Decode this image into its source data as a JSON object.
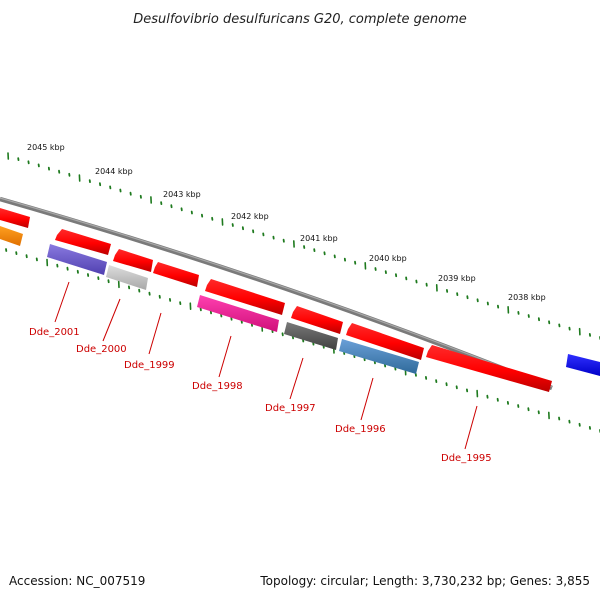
{
  "title": "Desulfovibrio desulfuricans G20, complete genome",
  "accession": "Accession: NC_007519",
  "summary": "Topology: circular; Length: 3,730,232 bp; Genes: 3,855",
  "kbp_labels": [
    "2045 kbp",
    "2044 kbp",
    "2043 kbp",
    "2042 kbp",
    "2041 kbp",
    "2040 kbp",
    "2039 kbp",
    "2038 kbp"
  ],
  "gene_labels": [
    "Dde_2001",
    "Dde_2000",
    "Dde_1999",
    "Dde_1998",
    "Dde_1997",
    "Dde_1996",
    "Dde_1995"
  ],
  "colors": {
    "backbone": "#7a7a7a",
    "ticks": "#1e7a1e",
    "label": "#cc0000",
    "red": "#ff0000",
    "orange": "#ff8800",
    "slate_purple": "#6a5acd",
    "light_gray": "#c0c0c0",
    "deep_pink": "#ff1493",
    "dim_gray": "#666666",
    "steel_blue": "#4682b4",
    "blue": "#0000ff"
  }
}
